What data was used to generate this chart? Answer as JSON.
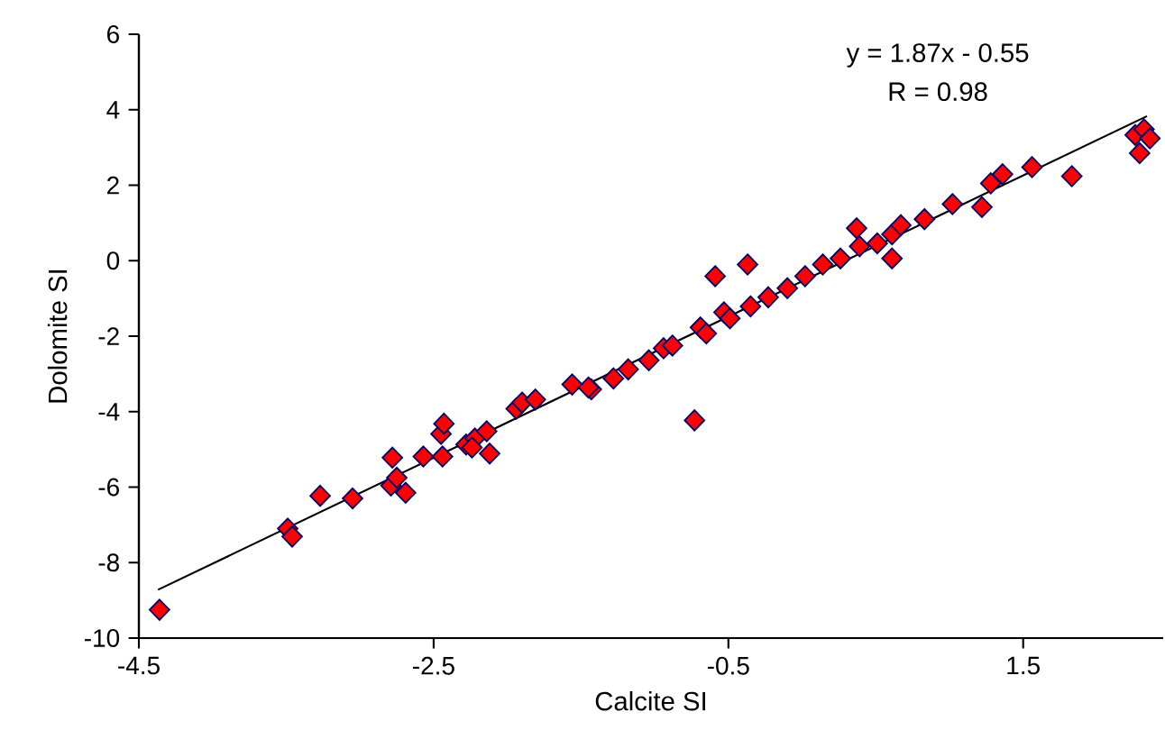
{
  "chart_data": {
    "type": "scatter",
    "xlabel": "Calcite SI",
    "ylabel": "Dolomite SI",
    "annotations": [
      "y = 1.87x - 0.55",
      "R = 0.98"
    ],
    "xlim": [
      -4.5,
      2.45
    ],
    "ylim": [
      -10,
      6
    ],
    "xticks": [
      -4.5,
      -2.5,
      -0.5,
      1.5
    ],
    "yticks": [
      -10,
      -8,
      -6,
      -4,
      -2,
      0,
      2,
      4,
      6
    ],
    "grid": false,
    "marker": "diamond",
    "series": [
      {
        "color": "#ff0000",
        "x": [
          -4.36,
          -3.49,
          -3.46,
          -3.27,
          -3.05,
          -2.78,
          -2.79,
          -2.75,
          -2.69,
          -2.57,
          -2.45,
          -2.43,
          -2.44,
          -2.28,
          -2.22,
          -2.14,
          -2.12,
          -2.24,
          -1.94,
          -1.9,
          -1.81,
          -1.56,
          -1.43,
          -1.45,
          -1.28,
          -1.18,
          -1.04,
          -0.94,
          -0.88,
          -0.73,
          -0.59,
          -0.37,
          -0.69,
          -0.65,
          -0.53,
          -0.49,
          -0.35,
          -0.23,
          -0.1,
          0.02,
          0.14,
          0.26,
          0.39,
          0.51,
          0.61,
          0.67,
          0.83,
          0.37,
          0.61,
          1.02,
          1.22,
          1.28,
          1.36,
          1.56,
          1.83,
          2.26,
          2.32,
          2.36,
          2.29
        ],
        "values": [
          -9.25,
          -7.1,
          -7.31,
          -6.23,
          -6.3,
          -5.22,
          -5.96,
          -5.75,
          -6.15,
          -5.19,
          -4.59,
          -4.32,
          -5.19,
          -4.87,
          -4.71,
          -4.52,
          -5.11,
          -4.95,
          -3.92,
          -3.76,
          -3.68,
          -3.28,
          -3.41,
          -3.36,
          -3.12,
          -2.88,
          -2.64,
          -2.32,
          -2.25,
          -4.23,
          -0.41,
          -0.1,
          -1.77,
          -1.93,
          -1.37,
          -1.53,
          -1.21,
          -0.97,
          -0.73,
          -0.41,
          -0.1,
          0.06,
          0.38,
          0.46,
          0.7,
          0.94,
          1.1,
          0.86,
          0.06,
          1.5,
          1.42,
          2.05,
          2.29,
          2.48,
          2.24,
          3.33,
          3.48,
          3.24,
          2.85
        ]
      },
      {
        "type": "line",
        "color": "#000000",
        "marker": "none",
        "x": [
          -4.37,
          2.34
        ],
        "values": [
          -8.72,
          3.83
        ]
      }
    ]
  }
}
